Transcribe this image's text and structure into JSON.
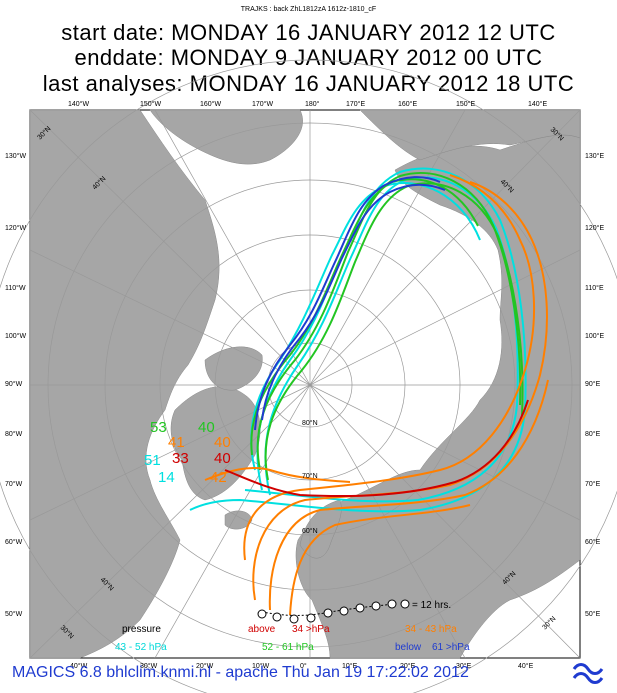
{
  "header": {
    "small_caption": "TRAJKS : back ZhL1812zA 1612z-1810_cF",
    "line1": "start date:  MONDAY     16 JANUARY    2012 12 UTC",
    "line2": "enddate:  MONDAY     9 JANUARY    2012 00 UTC",
    "line3": "last analyses:  MONDAY     16 JANUARY    2012 18 UTC"
  },
  "map": {
    "top_longitudes": [
      "140°W",
      "150°W",
      "160°W",
      "170°W",
      "180°",
      "170°E",
      "160°E",
      "150°E",
      "140°E"
    ],
    "left_longitudes": [
      "130°W",
      "120°W",
      "110°W",
      "100°W",
      "90°W",
      "80°W",
      "70°W",
      "60°W",
      "50°W"
    ],
    "right_longitudes": [
      "130°E",
      "120°E",
      "110°E",
      "100°E",
      "90°E",
      "80°E",
      "70°E",
      "60°E",
      "50°E"
    ],
    "bottom_longitudes": [
      "40°W",
      "30°W",
      "20°W",
      "10°W",
      "0°",
      "10°E",
      "20°E",
      "30°E",
      "40°E"
    ],
    "latitude_labels": [
      "80°N",
      "70°N",
      "60°N"
    ],
    "corner_labels": [
      "30°N",
      "40°N",
      "40°N",
      "30°N",
      "40°N",
      "30°N",
      "40°N",
      "30°N"
    ],
    "start_labels": [
      {
        "text": "53",
        "color": "#22c522"
      },
      {
        "text": "40",
        "color": "#22c522"
      },
      {
        "text": "41",
        "color": "#ff7f00"
      },
      {
        "text": "40",
        "color": "#ff7f00"
      },
      {
        "text": "51",
        "color": "#00e0e0"
      },
      {
        "text": "33",
        "color": "#d00000"
      },
      {
        "text": "40",
        "color": "#d00000"
      },
      {
        "text": "14",
        "color": "#00e0e0"
      },
      {
        "text": "42",
        "color": "#ff7f00"
      }
    ],
    "time_marker_note": "= 12 hrs."
  },
  "legend": {
    "pressure_title": "pressure",
    "items": [
      {
        "text": "43 -    52 hPa",
        "color": "#00d8d8"
      },
      {
        "text": "above",
        "color": "#d00000"
      },
      {
        "text": "34 >hPa",
        "color": "#d00000"
      },
      {
        "text": "34 -    43 hPa",
        "color": "#ff7f00"
      },
      {
        "text": "52 -    61 hPa",
        "color": "#22c522"
      },
      {
        "text": "below",
        "color": "#1f3bd0"
      },
      {
        "text": "61 >hPa",
        "color": "#1f3bd0"
      }
    ]
  },
  "footer": {
    "text": "MAGICS 6.8 bhlclim.knmi.nl - apache Thu Jan 19 17:22:02 2012"
  },
  "colors": {
    "land": "#a6a6a6",
    "sea": "#ffffff",
    "grid": "#999999",
    "orange": "#ff7f00",
    "red": "#d00000",
    "green": "#22c522",
    "cyan": "#00e0e0",
    "blue": "#1f3bd0"
  }
}
